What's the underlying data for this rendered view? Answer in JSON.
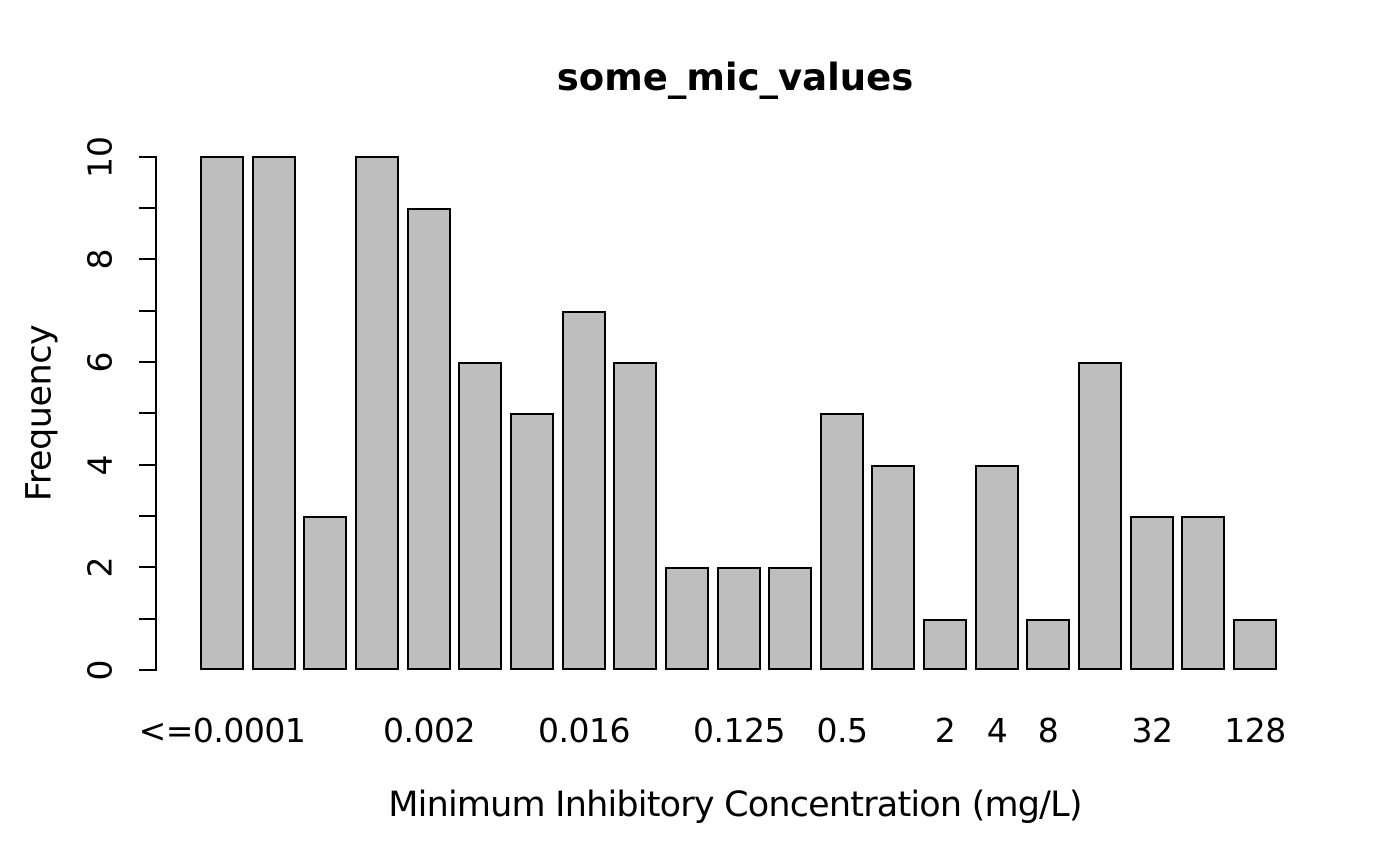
{
  "title": "some_mic_values",
  "y_axis": {
    "label": "Frequency",
    "major_tick_labels": [
      "0",
      "2",
      "4",
      "6",
      "8",
      "10"
    ]
  },
  "x_axis": {
    "label": "Minimum Inhibitory Concentration (mg/L)"
  },
  "chart_data": {
    "type": "bar",
    "subtype": "histogram-of-mic-values",
    "title": "some_mic_values",
    "xlabel": "Minimum Inhibitory Concentration (mg/L)",
    "ylabel": "Frequency",
    "ylim": [
      0,
      10
    ],
    "y_major_ticks": [
      0,
      2,
      4,
      6,
      8,
      10
    ],
    "y_minor_ticks": [
      1,
      3,
      5,
      7,
      9
    ],
    "grid": false,
    "legend": null,
    "categories": [
      "<=0.0001",
      "",
      "",
      "",
      "0.002",
      "",
      "",
      "0.016",
      "",
      "",
      "0.125",
      "",
      "0.5",
      "",
      "2",
      "4",
      "8",
      "",
      "32",
      "",
      "128"
    ],
    "values": [
      10,
      10,
      3,
      10,
      9,
      6,
      5,
      7,
      6,
      2,
      2,
      2,
      5,
      4,
      1,
      4,
      1,
      6,
      3,
      3,
      1
    ],
    "colors": {
      "bar_fill": "#bebebe",
      "bar_stroke": "#000000",
      "axis": "#000000",
      "text": "#000000",
      "background": "#ffffff"
    }
  }
}
